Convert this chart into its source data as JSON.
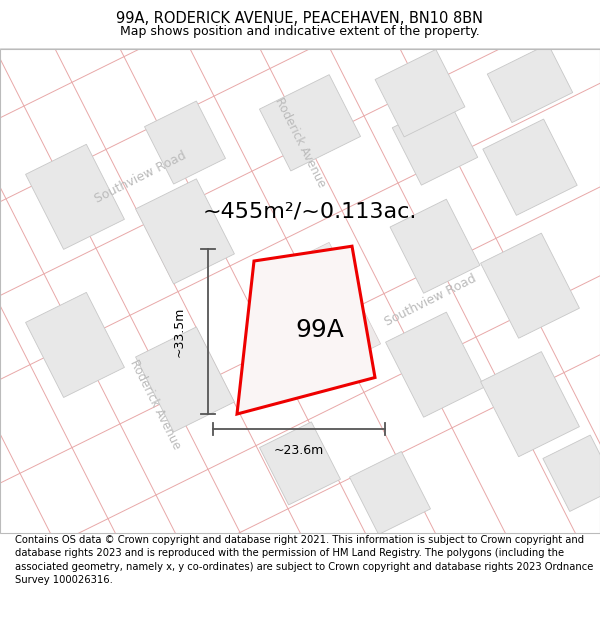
{
  "title": "99A, RODERICK AVENUE, PEACEHAVEN, BN10 8BN",
  "subtitle": "Map shows position and indicative extent of the property.",
  "footer": "Contains OS data © Crown copyright and database right 2021. This information is subject to Crown copyright and database rights 2023 and is reproduced with the permission of HM Land Registry. The polygons (including the associated geometry, namely x, y co-ordinates) are subject to Crown copyright and database rights 2023 Ordnance Survey 100026316.",
  "area_label": "~455m²/~0.113ac.",
  "property_label": "99A",
  "dim_vertical": "~33.5m",
  "dim_horizontal": "~23.6m",
  "map_bg": "#faf6f6",
  "road_line_color": "#e8a8a8",
  "block_fill": "#e8e8e8",
  "block_edge": "#c8c8c8",
  "road_label_color": "#bbbbbb",
  "highlight_color": "#ee0000",
  "dim_line_color": "#555555",
  "figsize": [
    6.0,
    6.25
  ],
  "dpi": 100,
  "title_fontsize": 10.5,
  "subtitle_fontsize": 9,
  "footer_fontsize": 7.2,
  "area_fontsize": 16,
  "label_fontsize": 18,
  "road_label_fontsize": 9,
  "dim_fontsize": 9
}
